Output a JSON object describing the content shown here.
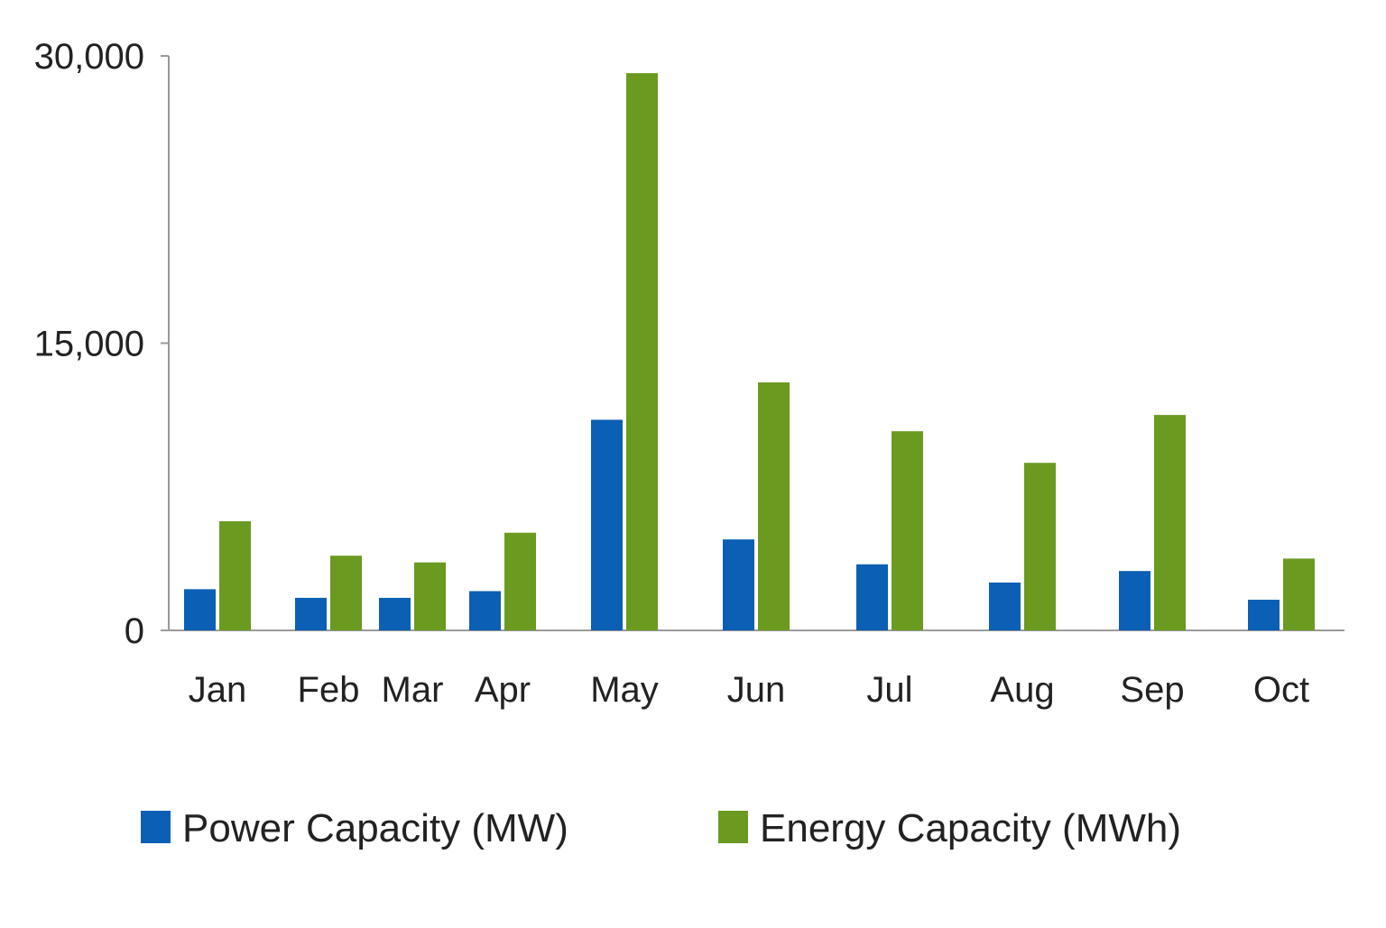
{
  "chart_data": {
    "type": "bar",
    "categories": [
      "Jan",
      "Feb",
      "Mar",
      "Apr",
      "May",
      "Jun",
      "Jul",
      "Aug",
      "Sep",
      "Oct"
    ],
    "series": [
      {
        "name": "Power Capacity (MW)",
        "color": "#0b5fb4",
        "values": [
          2150,
          1700,
          1700,
          2050,
          11000,
          4750,
          3450,
          2500,
          3100,
          1600
        ]
      },
      {
        "name": "Energy Capacity (MWh)",
        "color": "#6a9a1f",
        "values": [
          5700,
          3900,
          3550,
          5100,
          29100,
          12950,
          10400,
          8750,
          11250,
          3750
        ]
      }
    ],
    "ylim": [
      0,
      30000
    ],
    "yticks": [
      0,
      15000,
      30000
    ],
    "ytick_labels": [
      "0",
      "15,000",
      "30,000"
    ],
    "grid": false,
    "legend_position": "bottom"
  }
}
